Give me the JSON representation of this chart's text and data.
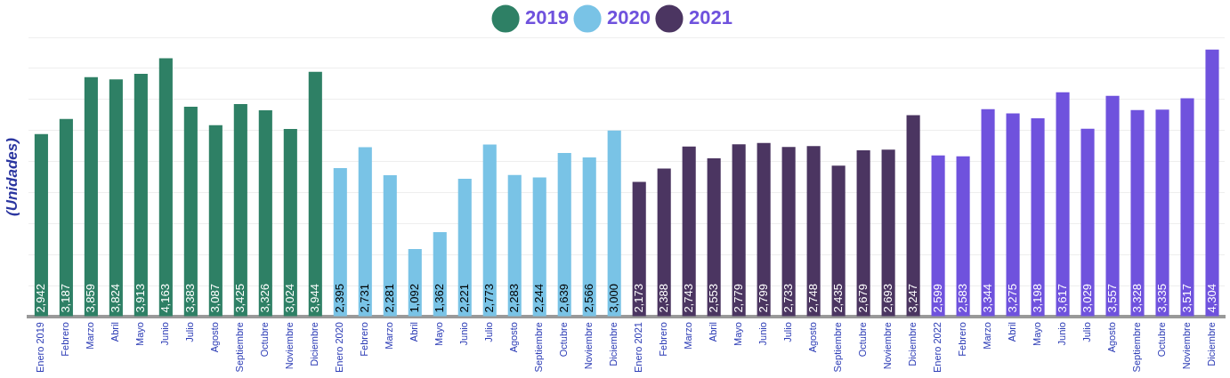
{
  "chart_data": {
    "type": "bar",
    "ylabel": "(Unidades)",
    "categories": [
      "Enero 2019",
      "Febrero",
      "Marzo",
      "Abril",
      "Mayo",
      "Junio",
      "Julio",
      "Agosto",
      "Septiembre",
      "Octubre",
      "Noviembre",
      "Diciembre",
      "Enero 2020",
      "Febrero",
      "Marzo",
      "Abril",
      "Mayo",
      "Junio",
      "Julio",
      "Agosto",
      "Septiembre",
      "Octubre",
      "Noviembre",
      "Diciembre",
      "Enero 2021",
      "Febrero",
      "Marzo",
      "Abril",
      "Mayo",
      "Junio",
      "Julio",
      "Agosto",
      "Septiembre",
      "Octubre",
      "Noviembre",
      "Diciembre",
      "Enero 2022",
      "Febrero",
      "Marzo",
      "Abril",
      "Mayo",
      "Junio",
      "Julio",
      "Agosto",
      "Septiembre",
      "Octubre",
      "Noviembre",
      "Diciembre"
    ],
    "series": [
      {
        "name": "2019",
        "color": "#2e8065",
        "values": [
          2942,
          3187,
          3859,
          3824,
          3913,
          4163,
          3383,
          3087,
          3425,
          3326,
          3024,
          3944,
          null,
          null,
          null,
          null,
          null,
          null,
          null,
          null,
          null,
          null,
          null,
          null,
          null,
          null,
          null,
          null,
          null,
          null,
          null,
          null,
          null,
          null,
          null,
          null,
          null,
          null,
          null,
          null,
          null,
          null,
          null,
          null,
          null,
          null,
          null,
          null
        ],
        "value_labels": [
          "2,942",
          "3,187",
          "3,859",
          "3,824",
          "3,913",
          "4,163",
          "3,383",
          "3,087",
          "3,425",
          "3,326",
          "3,024",
          "3,944",
          null,
          null,
          null,
          null,
          null,
          null,
          null,
          null,
          null,
          null,
          null,
          null,
          null,
          null,
          null,
          null,
          null,
          null,
          null,
          null,
          null,
          null,
          null,
          null,
          null,
          null,
          null,
          null,
          null,
          null,
          null,
          null,
          null,
          null,
          null,
          null
        ]
      },
      {
        "name": "2020",
        "color": "#79c3e6",
        "values": [
          null,
          null,
          null,
          null,
          null,
          null,
          null,
          null,
          null,
          null,
          null,
          null,
          2395,
          2731,
          2281,
          1092,
          1362,
          2221,
          2773,
          2283,
          2244,
          2639,
          2566,
          3000,
          null,
          null,
          null,
          null,
          null,
          null,
          null,
          null,
          null,
          null,
          null,
          null,
          null,
          null,
          null,
          null,
          null,
          null,
          null,
          null,
          null,
          null,
          null,
          null
        ],
        "value_labels": [
          null,
          null,
          null,
          null,
          null,
          null,
          null,
          null,
          null,
          null,
          null,
          null,
          "2,395",
          "2,731",
          "2,281",
          "1,092",
          "1,362",
          "2,221",
          "2,773",
          "2,283",
          "2,244",
          "2,639",
          "2,566",
          "3,000",
          null,
          null,
          null,
          null,
          null,
          null,
          null,
          null,
          null,
          null,
          null,
          null,
          null,
          null,
          null,
          null,
          null,
          null,
          null,
          null,
          null,
          null,
          null,
          null
        ]
      },
      {
        "name": "2021",
        "color": "#4b3561",
        "values": [
          null,
          null,
          null,
          null,
          null,
          null,
          null,
          null,
          null,
          null,
          null,
          null,
          null,
          null,
          null,
          null,
          null,
          null,
          null,
          null,
          null,
          null,
          null,
          null,
          2173,
          2388,
          2743,
          2553,
          2779,
          2799,
          2733,
          2748,
          2435,
          2679,
          2693,
          3247,
          null,
          null,
          null,
          null,
          null,
          null,
          null,
          null,
          null,
          null,
          null,
          null
        ],
        "value_labels": [
          null,
          null,
          null,
          null,
          null,
          null,
          null,
          null,
          null,
          null,
          null,
          null,
          null,
          null,
          null,
          null,
          null,
          null,
          null,
          null,
          null,
          null,
          null,
          null,
          "2,173",
          "2,388",
          "2,743",
          "2,553",
          "2,779",
          "2,799",
          "2,733",
          "2,748",
          "2,435",
          "2,679",
          "2,693",
          "3,247",
          null,
          null,
          null,
          null,
          null,
          null,
          null,
          null,
          null,
          null,
          null,
          null
        ]
      },
      {
        "color": "#6f52dd",
        "values": [
          null,
          null,
          null,
          null,
          null,
          null,
          null,
          null,
          null,
          null,
          null,
          null,
          null,
          null,
          null,
          null,
          null,
          null,
          null,
          null,
          null,
          null,
          null,
          null,
          null,
          null,
          null,
          null,
          null,
          null,
          null,
          null,
          null,
          null,
          null,
          null,
          2599,
          2583,
          3344,
          3275,
          3198,
          3617,
          3029,
          3557,
          3328,
          3335,
          3517,
          4304
        ],
        "value_labels": [
          null,
          null,
          null,
          null,
          null,
          null,
          null,
          null,
          null,
          null,
          null,
          null,
          null,
          null,
          null,
          null,
          null,
          null,
          null,
          null,
          null,
          null,
          null,
          null,
          null,
          null,
          null,
          null,
          null,
          null,
          null,
          null,
          null,
          null,
          null,
          null,
          "2,599",
          "2,583",
          "3,344",
          "3,275",
          "3,198",
          "3,617",
          "3,029",
          "3,557",
          "3,328",
          "3,335",
          "3,517",
          "4,304"
        ]
      }
    ],
    "grid": "y",
    "legend": "top"
  }
}
